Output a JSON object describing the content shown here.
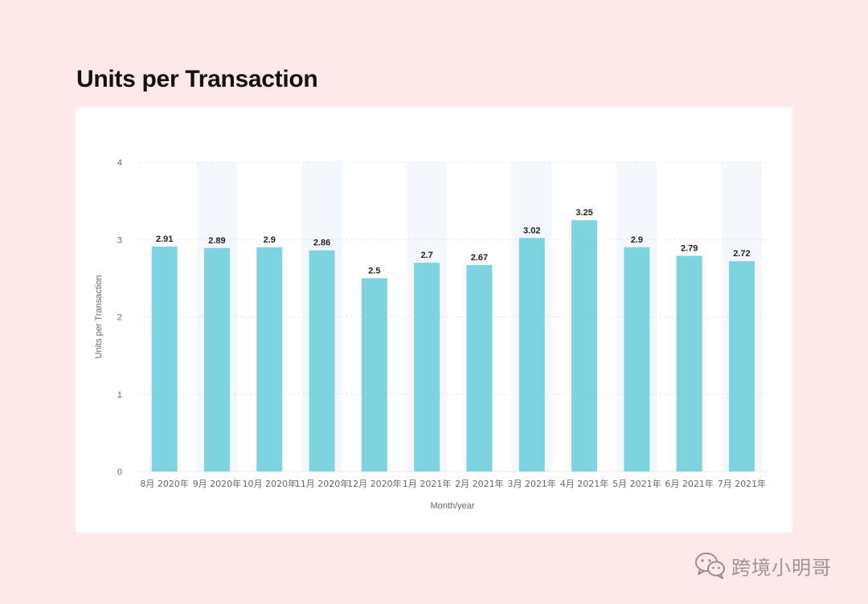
{
  "page": {
    "title": "Units per Transaction",
    "watermark_text": "跨境小明哥"
  },
  "chart_data": {
    "type": "bar",
    "title": "Units per Transaction",
    "xlabel": "Month/year",
    "ylabel": "Units per Transaction",
    "ylim": [
      0,
      4
    ],
    "yticks": [
      0,
      1,
      2,
      3,
      4
    ],
    "categories": [
      "8月 2020年",
      "9月 2020年",
      "10月 2020年",
      "11月 2020年",
      "12月 2020年",
      "1月 2021年",
      "2月 2021年",
      "3月 2021年",
      "4月 2021年",
      "5月 2021年",
      "6月 2021年",
      "7月 2021年"
    ],
    "values": [
      2.91,
      2.89,
      2.9,
      2.86,
      2.5,
      2.7,
      2.67,
      3.02,
      3.25,
      2.9,
      2.79,
      2.72
    ],
    "value_labels": [
      "2.91",
      "2.89",
      "2.9",
      "2.86",
      "2.5",
      "2.7",
      "2.67",
      "3.02",
      "3.25",
      "2.9",
      "2.79",
      "2.72"
    ],
    "shaded_categories": [
      1,
      3,
      5,
      7,
      9,
      11
    ],
    "grid": true,
    "colors": {
      "bar": "#7dd3df",
      "band": "#f4f7fb",
      "grid": "#e4e8ec",
      "axis_text": "#666666",
      "value_text": "#222222"
    }
  }
}
